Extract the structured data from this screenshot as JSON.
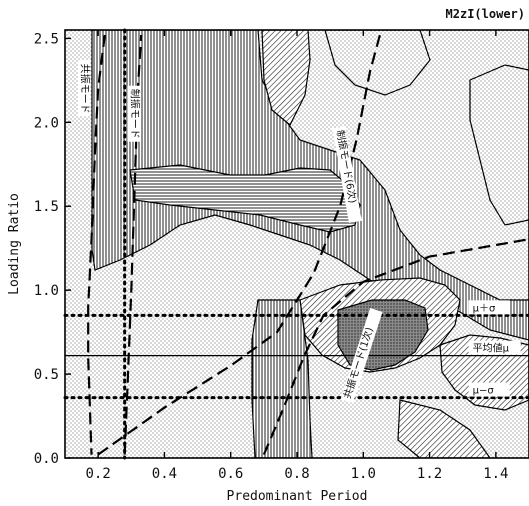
{
  "chart_data": {
    "type": "contour",
    "title": "M2zI(lower)",
    "xlabel": "Predominant Period",
    "ylabel": "Loading Ratio",
    "xlim": [
      0.1,
      1.5
    ],
    "ylim": [
      0.0,
      2.55
    ],
    "x_ticks": [
      {
        "value": 0.2,
        "label": "0.2"
      },
      {
        "value": 0.4,
        "label": "0.4"
      },
      {
        "value": 0.6,
        "label": "0.6"
      },
      {
        "value": 0.8,
        "label": "0.8"
      },
      {
        "value": 1.0,
        "label": "1.0"
      },
      {
        "value": 1.2,
        "label": "1.2"
      },
      {
        "value": 1.4,
        "label": "1.4"
      }
    ],
    "y_ticks": [
      {
        "value": 0.0,
        "label": "0.0"
      },
      {
        "value": 0.5,
        "label": "0.5"
      },
      {
        "value": 1.0,
        "label": "1.0"
      },
      {
        "value": 1.5,
        "label": "1.5"
      },
      {
        "value": 2.0,
        "label": "2.0"
      },
      {
        "value": 2.5,
        "label": "2.5"
      }
    ],
    "reference_lines": [
      {
        "y": 0.85,
        "style": "dotted",
        "label": "μ＋σ"
      },
      {
        "y": 0.61,
        "style": "solid",
        "label": "平均値μ"
      },
      {
        "y": 0.36,
        "style": "dotted",
        "label": "μ−σ"
      },
      {
        "x": 0.28,
        "style": "dotted"
      }
    ],
    "mode_curves": [
      {
        "label": "共振モード",
        "style": "dashed",
        "points": [
          [
            0.22,
            2.52
          ],
          [
            0.2,
            2.2
          ],
          [
            0.19,
            1.8
          ],
          [
            0.18,
            1.3
          ],
          [
            0.17,
            0.9
          ],
          [
            0.17,
            0.6
          ],
          [
            0.175,
            0.3
          ],
          [
            0.18,
            0.02
          ]
        ]
      },
      {
        "label": "制振モード",
        "style": "dashed",
        "points": [
          [
            0.28,
            0.02
          ],
          [
            0.29,
            0.5
          ],
          [
            0.3,
            1.0
          ],
          [
            0.31,
            1.6
          ],
          [
            0.32,
            2.2
          ],
          [
            0.33,
            2.52
          ]
        ]
      },
      {
        "label": "制振モード(6次)",
        "style": "dashed",
        "points": [
          [
            0.2,
            0.02
          ],
          [
            0.4,
            0.3
          ],
          [
            0.6,
            0.55
          ],
          [
            0.74,
            0.75
          ],
          [
            0.85,
            1.1
          ],
          [
            0.93,
            1.5
          ],
          [
            0.98,
            1.9
          ],
          [
            1.02,
            2.3
          ],
          [
            1.05,
            2.52
          ]
        ]
      },
      {
        "label": "共振モード(1次)",
        "style": "dashed",
        "points": [
          [
            0.7,
            0.02
          ],
          [
            0.76,
            0.3
          ],
          [
            0.82,
            0.6
          ],
          [
            0.88,
            0.85
          ],
          [
            1.0,
            1.05
          ],
          [
            1.2,
            1.2
          ],
          [
            1.49,
            1.3
          ]
        ]
      }
    ],
    "grid": false
  }
}
